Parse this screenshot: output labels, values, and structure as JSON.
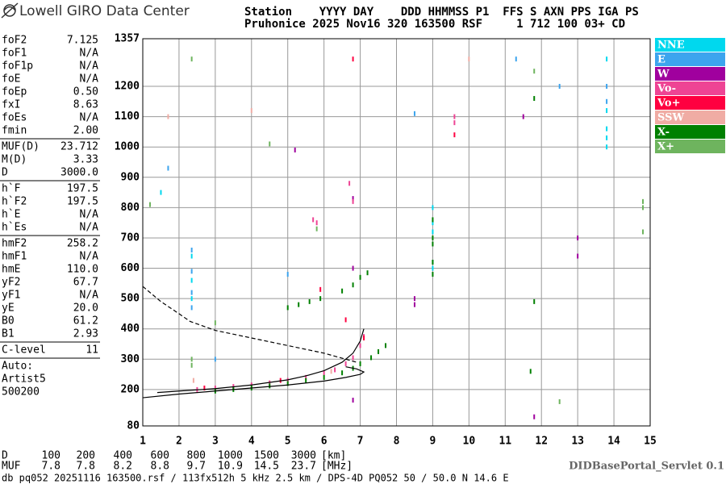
{
  "header": {
    "logo": "Lowell GIRO Data Center",
    "line1": "Station    YYYY DAY    DDD HHMMSS P1  FFS S AXN PPS IGA PS",
    "line2": "Pruhonice 2025 Nov16 320 163500 RSF     1 712 100 03+ CD"
  },
  "sidebar": {
    "groups": [
      [
        {
          "label": "foF2",
          "value": "7.125"
        },
        {
          "label": "foF1",
          "value": "N/A"
        },
        {
          "label": "foF1p",
          "value": "N/A"
        },
        {
          "label": "foE",
          "value": "N/A"
        },
        {
          "label": "foEp",
          "value": "0.50"
        },
        {
          "label": "fxI",
          "value": "8.63"
        },
        {
          "label": "foEs",
          "value": "N/A"
        },
        {
          "label": "fmin",
          "value": "2.00"
        }
      ],
      [
        {
          "label": "MUF(D)",
          "value": "23.712"
        },
        {
          "label": "M(D)",
          "value": "3.33"
        },
        {
          "label": "D",
          "value": "3000.0"
        }
      ],
      [
        {
          "label": "h`F",
          "value": "197.5"
        },
        {
          "label": "h`F2",
          "value": "197.5"
        },
        {
          "label": "h`E",
          "value": "N/A"
        },
        {
          "label": "h`Es",
          "value": "N/A"
        }
      ],
      [
        {
          "label": "hmF2",
          "value": "258.2"
        },
        {
          "label": "hmF1",
          "value": "N/A"
        },
        {
          "label": "hmE",
          "value": "110.0"
        },
        {
          "label": "yF2",
          "value": "67.7"
        },
        {
          "label": "yF1",
          "value": "N/A"
        },
        {
          "label": "yE",
          "value": "20.0"
        },
        {
          "label": "B0",
          "value": "61.2"
        },
        {
          "label": "B1",
          "value": "2.93"
        }
      ],
      [
        {
          "label": "C-level",
          "value": "11"
        }
      ]
    ],
    "auto": [
      "Auto:",
      "Artist5",
      "500200"
    ]
  },
  "muf_table": {
    "d_label": "D",
    "d": [
      "100",
      "200",
      "400",
      "600",
      "800",
      "1000",
      "1500",
      "3000"
    ],
    "d_unit": "[km]",
    "muf_label": "MUF",
    "muf": [
      "7.8",
      "7.8",
      "8.2",
      "8.8",
      "9.7",
      "10.9",
      "14.5",
      "23.7"
    ],
    "muf_unit": "[MHz]"
  },
  "footer": {
    "servlet": "DIDBasePortal_Servlet 0.1",
    "info": "db pq052 20251116 163500.rsf / 113fx512h 5 kHz 2.5 km / DPS-4D PQ052 50 / 50.0 N 14.6 E"
  },
  "chart_data": {
    "type": "scatter",
    "xlim": [
      1,
      15
    ],
    "xticks": [
      1,
      2,
      3,
      4,
      5,
      6,
      7,
      8,
      9,
      10,
      11,
      12,
      13,
      14,
      15
    ],
    "ylim": [
      80,
      1357
    ],
    "yticks": [
      80,
      200,
      300,
      400,
      500,
      600,
      700,
      800,
      900,
      1000,
      1100,
      1200,
      1357
    ],
    "grid": true,
    "legend": "right",
    "series": [
      {
        "name": "NNE",
        "color": "#00d8ee",
        "x": [
          9,
          9,
          9,
          9,
          9,
          13.8,
          13.8,
          13.8,
          13.8,
          13.8,
          2.35,
          2.35,
          2.35,
          1.5
        ],
        "y": [
          600,
          620,
          720,
          750,
          800,
          1000,
          1030,
          1060,
          1120,
          1290,
          500,
          560,
          640,
          850
        ]
      },
      {
        "name": "E",
        "color": "#3ca4ee",
        "x": [
          2.35,
          2.35,
          2.35,
          2.35,
          13.8,
          13.8,
          8.5,
          12.5,
          3,
          1.7,
          5,
          11.3
        ],
        "y": [
          470,
          520,
          590,
          660,
          1200,
          1150,
          1110,
          1200,
          300,
          930,
          580,
          1290
        ]
      },
      {
        "name": "W",
        "color": "#a0009e",
        "x": [
          6.8,
          8.5,
          8.5,
          11.5,
          13,
          13,
          11.8,
          6.8,
          6.8,
          5.2
        ],
        "y": [
          165,
          480,
          500,
          1100,
          700,
          640,
          110,
          830,
          600,
          990
        ]
      },
      {
        "name": "Vo-",
        "color": "#ee4494",
        "x": [
          2.5,
          3,
          3.5,
          4,
          4.5,
          5,
          5.5,
          6,
          6.3,
          6.6,
          6.8,
          7,
          7.1,
          5.8,
          5.7,
          6.8,
          9.6,
          9.6,
          6.7
        ],
        "y": [
          200,
          205,
          210,
          215,
          222,
          230,
          240,
          255,
          265,
          285,
          305,
          345,
          375,
          750,
          760,
          820,
          1100,
          1080,
          880
        ]
      },
      {
        "name": "Vo+",
        "color": "#ff0040",
        "x": [
          6.8,
          9.6,
          7.1,
          2.7,
          4.8,
          6.6,
          5.9
        ],
        "y": [
          1290,
          1040,
          370,
          205,
          230,
          430,
          530
        ]
      },
      {
        "name": "SSW",
        "color": "#f0aca4",
        "x": [
          10,
          2.4,
          4,
          6.2,
          1.7
        ],
        "y": [
          1290,
          230,
          1120,
          260,
          1100
        ]
      },
      {
        "name": "X-",
        "color": "#008000",
        "x": [
          3,
          3.5,
          4,
          4.5,
          5,
          5.5,
          6,
          6.5,
          6.8,
          7,
          7.3,
          7.5,
          7.7,
          5,
          5.3,
          5.6,
          5.9,
          6.5,
          6.8,
          7,
          7.2,
          9,
          9,
          9,
          9,
          9,
          11.8,
          11.8,
          11.7
        ],
        "y": [
          195,
          200,
          205,
          212,
          220,
          230,
          240,
          255,
          270,
          285,
          305,
          325,
          345,
          470,
          480,
          490,
          500,
          525,
          545,
          570,
          585,
          580,
          620,
          700,
          680,
          760,
          1160,
          490,
          260
        ]
      },
      {
        "name": "X+",
        "color": "#6eb45e",
        "x": [
          2.35,
          2.35,
          2.35,
          14.8,
          14.8,
          14.8,
          3,
          4.5,
          11.8,
          12.5,
          5.8,
          1.2
        ],
        "y": [
          300,
          280,
          1290,
          800,
          820,
          720,
          420,
          1010,
          1250,
          160,
          730,
          810
        ]
      }
    ],
    "curves": [
      {
        "dash": false,
        "x": [
          1.4,
          2,
          3,
          4,
          5,
          5.5,
          6,
          6.5,
          6.8,
          7,
          7.1
        ],
        "y": [
          190,
          195,
          203,
          215,
          232,
          245,
          262,
          290,
          320,
          360,
          400
        ]
      },
      {
        "dash": false,
        "x": [
          1,
          2,
          3,
          4,
          5,
          6,
          6.6,
          7,
          7.1,
          6.9,
          6.6
        ],
        "y": [
          173,
          185,
          195,
          205,
          215,
          228,
          240,
          250,
          258,
          268,
          275
        ]
      },
      {
        "dash": true,
        "x": [
          1,
          1.5,
          2,
          2.3,
          3,
          4,
          5,
          6,
          6.6,
          6.9
        ],
        "y": [
          540,
          490,
          450,
          425,
          395,
          370,
          345,
          320,
          300,
          290
        ]
      }
    ]
  }
}
